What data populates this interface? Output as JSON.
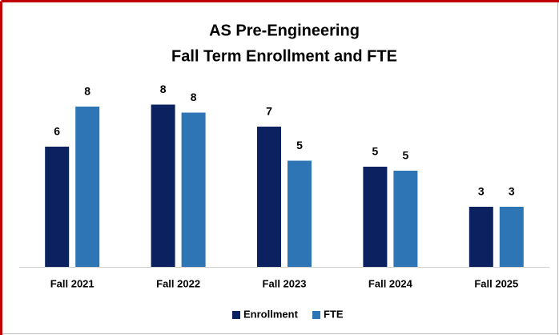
{
  "chart_data": {
    "type": "bar",
    "title": "AS Pre-Engineering",
    "subtitle": "Fall Term Enrollment and FTE",
    "categories": [
      "Fall 2021",
      "Fall 2022",
      "Fall 2023",
      "Fall 2024",
      "Fall 2025"
    ],
    "series": [
      {
        "name": "Enrollment",
        "color": "#0b2160",
        "values": [
          6,
          8.1,
          7,
          5,
          3
        ],
        "value_labels": [
          "6",
          "8",
          "7",
          "5",
          "3"
        ]
      },
      {
        "name": "FTE",
        "color": "#2e75b6",
        "values": [
          8,
          7.7,
          5.3,
          4.8,
          3
        ],
        "value_labels": [
          "8",
          "8",
          "5",
          "5",
          "3"
        ]
      }
    ],
    "legend": "bottom"
  }
}
